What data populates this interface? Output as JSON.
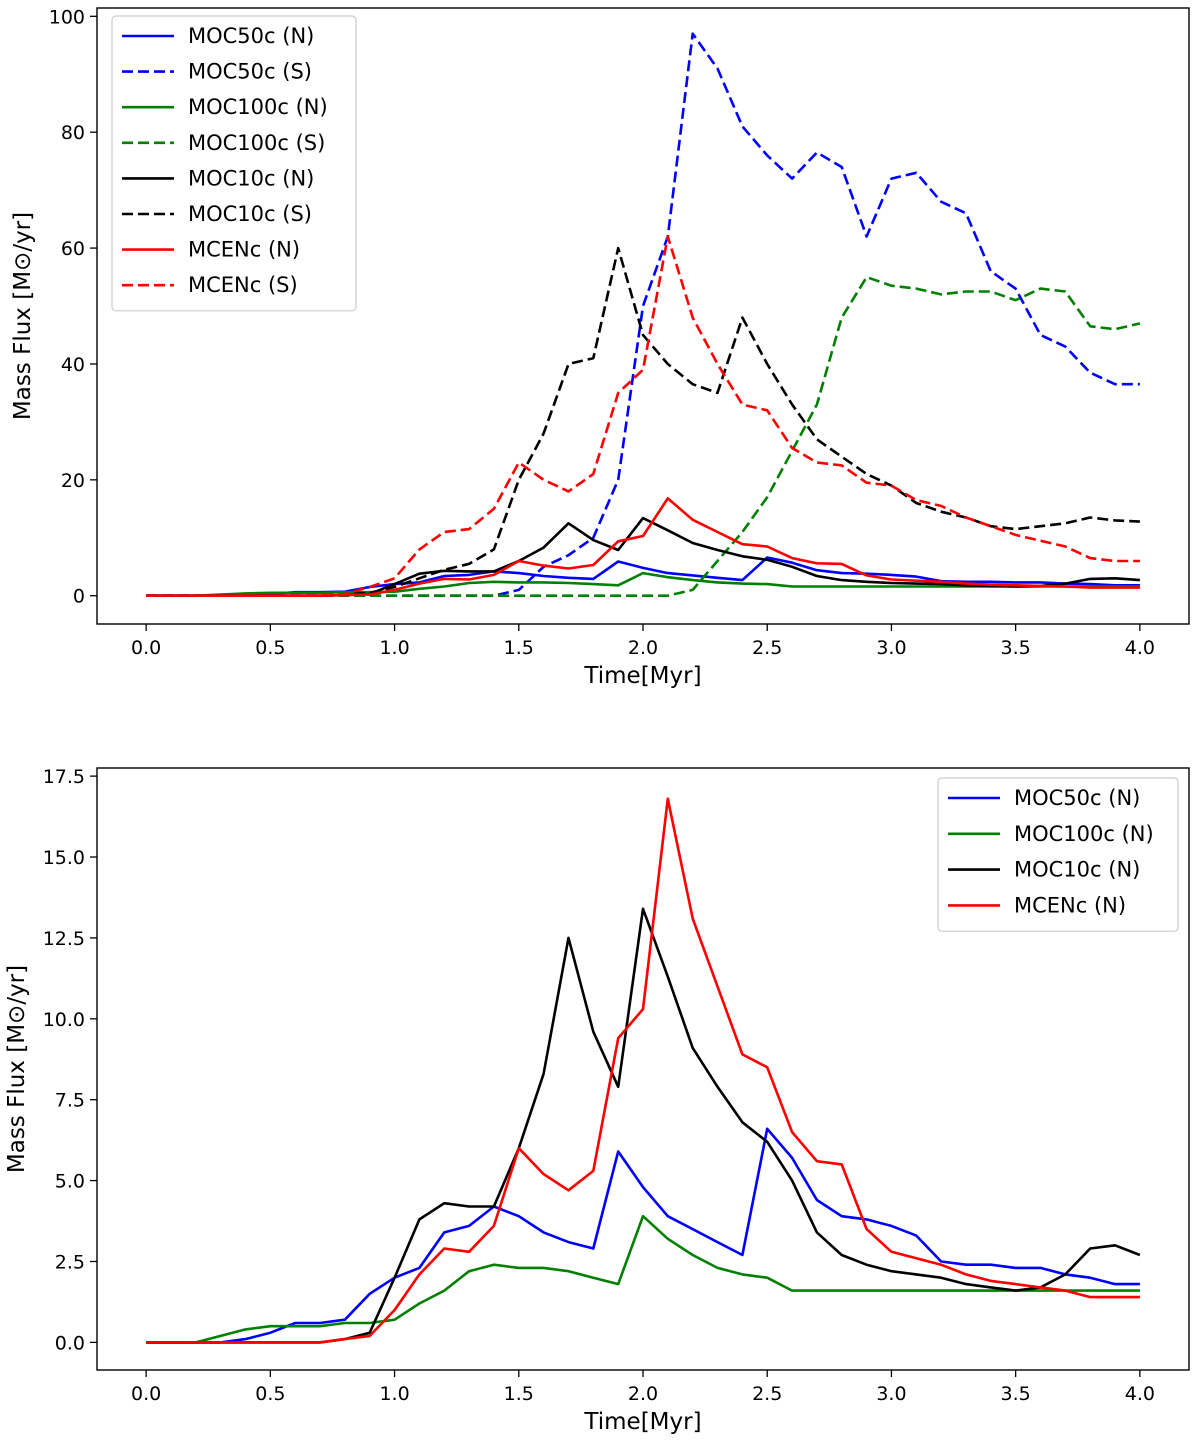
{
  "chart_data": [
    {
      "type": "line",
      "title": "",
      "xlabel": "Time[Myr]",
      "ylabel": "Mass Flux [M⊙/yr]",
      "xlim": [
        0,
        4
      ],
      "ylim": [
        0,
        100
      ],
      "xticks": [
        "0.0",
        "0.5",
        "1.0",
        "1.5",
        "2.0",
        "2.5",
        "3.0",
        "3.5",
        "4.0"
      ],
      "yticks": [
        "0",
        "20",
        "40",
        "60",
        "80",
        "100"
      ],
      "legend_position": "top-left",
      "x": [
        0,
        0.1,
        0.2,
        0.3,
        0.4,
        0.5,
        0.6,
        0.7,
        0.8,
        0.9,
        1.0,
        1.1,
        1.2,
        1.3,
        1.4,
        1.5,
        1.6,
        1.7,
        1.8,
        1.9,
        2.0,
        2.1,
        2.2,
        2.3,
        2.4,
        2.5,
        2.6,
        2.7,
        2.8,
        2.9,
        3.0,
        3.1,
        3.2,
        3.3,
        3.4,
        3.5,
        3.6,
        3.7,
        3.8,
        3.9,
        4.0
      ],
      "series": [
        {
          "name": "MOC50c (N)",
          "color": "#0000ff",
          "dash": "solid",
          "values": [
            0,
            0,
            0,
            0,
            0.1,
            0.3,
            0.6,
            0.6,
            0.7,
            1.5,
            2.0,
            2.3,
            3.4,
            3.6,
            4.2,
            3.9,
            3.4,
            3.1,
            2.9,
            5.9,
            4.8,
            3.9,
            3.5,
            3.1,
            2.7,
            6.6,
            5.7,
            4.4,
            3.9,
            3.8,
            3.6,
            3.3,
            2.5,
            2.4,
            2.4,
            2.3,
            2.3,
            2.1,
            2.0,
            1.8,
            1.8
          ]
        },
        {
          "name": "MOC50c (S)",
          "color": "#0000ff",
          "dash": "dashed",
          "values": [
            0,
            0,
            0,
            0,
            0,
            0,
            0,
            0,
            0,
            0,
            0,
            0,
            0,
            0,
            0,
            1.0,
            5.0,
            7.0,
            10.0,
            20.0,
            50.0,
            62.0,
            97.0,
            91.0,
            81.0,
            76.0,
            72.0,
            76.5,
            74.0,
            62.0,
            72.0,
            73.0,
            68.0,
            66.0,
            56.0,
            53.0,
            45.0,
            43.0,
            38.5,
            36.5,
            36.5
          ]
        },
        {
          "name": "MOC100c (N)",
          "color": "#008000",
          "dash": "solid",
          "values": [
            0,
            0,
            0,
            0.2,
            0.4,
            0.5,
            0.5,
            0.5,
            0.6,
            0.6,
            0.7,
            1.2,
            1.6,
            2.2,
            2.4,
            2.3,
            2.3,
            2.2,
            2.0,
            1.8,
            3.9,
            3.2,
            2.7,
            2.3,
            2.1,
            2.0,
            1.6,
            1.6,
            1.6,
            1.6,
            1.6,
            1.6,
            1.6,
            1.6,
            1.6,
            1.6,
            1.6,
            1.6,
            1.6,
            1.6,
            1.6
          ]
        },
        {
          "name": "MOC100c (S)",
          "color": "#008000",
          "dash": "dashed",
          "values": [
            0,
            0,
            0,
            0,
            0,
            0,
            0,
            0,
            0,
            0,
            0,
            0,
            0,
            0,
            0,
            0,
            0,
            0,
            0,
            0,
            0,
            0,
            1.0,
            6.0,
            11.0,
            17.0,
            25.0,
            33.0,
            48.0,
            55.0,
            53.5,
            53.0,
            52.0,
            52.5,
            52.5,
            51.0,
            53.0,
            52.5,
            46.5,
            46.0,
            47.0
          ]
        },
        {
          "name": "MOC10c (N)",
          "color": "#000000",
          "dash": "solid",
          "values": [
            0,
            0,
            0,
            0,
            0,
            0,
            0,
            0,
            0.1,
            0.3,
            2.0,
            3.8,
            4.3,
            4.2,
            4.2,
            6.0,
            8.3,
            12.5,
            9.6,
            7.9,
            13.4,
            11.3,
            9.1,
            7.9,
            6.8,
            6.2,
            5.0,
            3.4,
            2.7,
            2.4,
            2.2,
            2.1,
            2.0,
            1.8,
            1.7,
            1.6,
            1.7,
            2.1,
            2.9,
            3.0,
            2.7
          ]
        },
        {
          "name": "MOC10c (S)",
          "color": "#000000",
          "dash": "dashed",
          "values": [
            0,
            0,
            0,
            0,
            0,
            0,
            0,
            0,
            0.2,
            0.5,
            1.5,
            3.0,
            4.5,
            5.5,
            8.0,
            20.0,
            28.0,
            40.0,
            41.0,
            60.0,
            45.0,
            40.0,
            36.5,
            35.0,
            48.0,
            40.0,
            33.0,
            27.0,
            24.0,
            21.0,
            19.0,
            16.0,
            14.5,
            13.5,
            12.0,
            11.5,
            12.0,
            12.5,
            13.5,
            13.0,
            12.8
          ]
        },
        {
          "name": "MCENc (N)",
          "color": "#ff0000",
          "dash": "solid",
          "values": [
            0,
            0,
            0,
            0,
            0,
            0,
            0,
            0,
            0.1,
            0.2,
            1.0,
            2.1,
            2.9,
            2.8,
            3.6,
            6.0,
            5.2,
            4.7,
            5.3,
            9.4,
            10.3,
            16.8,
            13.1,
            11.0,
            8.9,
            8.5,
            6.5,
            5.6,
            5.5,
            3.5,
            2.8,
            2.6,
            2.4,
            2.1,
            1.9,
            1.8,
            1.7,
            1.6,
            1.4,
            1.4,
            1.4
          ]
        },
        {
          "name": "MCENc (S)",
          "color": "#ff0000",
          "dash": "dashed",
          "values": [
            0,
            0,
            0,
            0,
            0,
            0,
            0,
            0,
            0.3,
            1.5,
            3.0,
            8.0,
            11.0,
            11.5,
            15.0,
            23.0,
            20.0,
            18.0,
            21.0,
            35.0,
            39.0,
            62.0,
            48.0,
            40.0,
            33.0,
            32.0,
            25.5,
            23.0,
            22.5,
            19.5,
            19.0,
            16.5,
            15.5,
            13.5,
            12.0,
            10.5,
            9.5,
            8.5,
            6.5,
            6.0,
            6.0
          ]
        }
      ]
    },
    {
      "type": "line",
      "title": "",
      "xlabel": "Time[Myr]",
      "ylabel": "Mass Flux [M⊙/yr]",
      "xlim": [
        0,
        4
      ],
      "ylim": [
        0,
        17.5
      ],
      "xticks": [
        "0.0",
        "0.5",
        "1.0",
        "1.5",
        "2.0",
        "2.5",
        "3.0",
        "3.5",
        "4.0"
      ],
      "yticks": [
        "0.0",
        "2.5",
        "5.0",
        "7.5",
        "10.0",
        "12.5",
        "15.0",
        "17.5"
      ],
      "legend_position": "top-right",
      "x": [
        0,
        0.1,
        0.2,
        0.3,
        0.4,
        0.5,
        0.6,
        0.7,
        0.8,
        0.9,
        1.0,
        1.1,
        1.2,
        1.3,
        1.4,
        1.5,
        1.6,
        1.7,
        1.8,
        1.9,
        2.0,
        2.1,
        2.2,
        2.3,
        2.4,
        2.5,
        2.6,
        2.7,
        2.8,
        2.9,
        3.0,
        3.1,
        3.2,
        3.3,
        3.4,
        3.5,
        3.6,
        3.7,
        3.8,
        3.9,
        4.0
      ],
      "series": [
        {
          "name": "MOC50c (N)",
          "color": "#0000ff",
          "dash": "solid",
          "values": [
            0,
            0,
            0,
            0,
            0.1,
            0.3,
            0.6,
            0.6,
            0.7,
            1.5,
            2.0,
            2.3,
            3.4,
            3.6,
            4.2,
            3.9,
            3.4,
            3.1,
            2.9,
            5.9,
            4.8,
            3.9,
            3.5,
            3.1,
            2.7,
            6.6,
            5.7,
            4.4,
            3.9,
            3.8,
            3.6,
            3.3,
            2.5,
            2.4,
            2.4,
            2.3,
            2.3,
            2.1,
            2.0,
            1.8,
            1.8
          ]
        },
        {
          "name": "MOC100c (N)",
          "color": "#008000",
          "dash": "solid",
          "values": [
            0,
            0,
            0,
            0.2,
            0.4,
            0.5,
            0.5,
            0.5,
            0.6,
            0.6,
            0.7,
            1.2,
            1.6,
            2.2,
            2.4,
            2.3,
            2.3,
            2.2,
            2.0,
            1.8,
            3.9,
            3.2,
            2.7,
            2.3,
            2.1,
            2.0,
            1.6,
            1.6,
            1.6,
            1.6,
            1.6,
            1.6,
            1.6,
            1.6,
            1.6,
            1.6,
            1.6,
            1.6,
            1.6,
            1.6,
            1.6
          ]
        },
        {
          "name": "MOC10c (N)",
          "color": "#000000",
          "dash": "solid",
          "values": [
            0,
            0,
            0,
            0,
            0,
            0,
            0,
            0,
            0.1,
            0.3,
            2.0,
            3.8,
            4.3,
            4.2,
            4.2,
            6.0,
            8.3,
            12.5,
            9.6,
            7.9,
            13.4,
            11.3,
            9.1,
            7.9,
            6.8,
            6.2,
            5.0,
            3.4,
            2.7,
            2.4,
            2.2,
            2.1,
            2.0,
            1.8,
            1.7,
            1.6,
            1.7,
            2.1,
            2.9,
            3.0,
            2.7
          ]
        },
        {
          "name": "MCENc (N)",
          "color": "#ff0000",
          "dash": "solid",
          "values": [
            0,
            0,
            0,
            0,
            0,
            0,
            0,
            0,
            0.1,
            0.2,
            1.0,
            2.1,
            2.9,
            2.8,
            3.6,
            6.0,
            5.2,
            4.7,
            5.3,
            9.4,
            10.3,
            16.8,
            13.1,
            11.0,
            8.9,
            8.5,
            6.5,
            5.6,
            5.5,
            3.5,
            2.8,
            2.6,
            2.4,
            2.1,
            1.9,
            1.8,
            1.7,
            1.6,
            1.4,
            1.4,
            1.4
          ]
        }
      ]
    }
  ]
}
